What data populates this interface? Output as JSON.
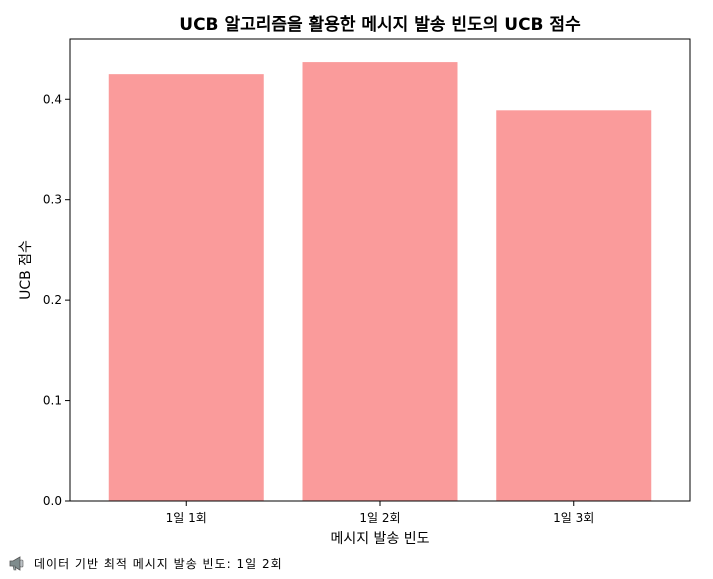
{
  "chart_data": {
    "type": "bar",
    "title": "UCB 알고리즘을 활용한 메시지 발송 빈도의 UCB 점수",
    "xlabel": "메시지 발송 빈도",
    "ylabel": "UCB 점수",
    "categories": [
      "1일 1회",
      "1일 2회",
      "1일 3회"
    ],
    "values": [
      0.425,
      0.437,
      0.389
    ],
    "ylim": [
      0,
      0.46
    ],
    "yticks": [
      0.0,
      0.1,
      0.2,
      0.3,
      0.4
    ],
    "ytick_labels": [
      "0.0",
      "0.1",
      "0.2",
      "0.3",
      "0.4"
    ],
    "bar_color": "#fa9b9b",
    "grid": false
  },
  "footer": {
    "icon": "megaphone-icon",
    "text": "데이터 기반 최적 메시지 발송 빈도: 1일 2회"
  }
}
